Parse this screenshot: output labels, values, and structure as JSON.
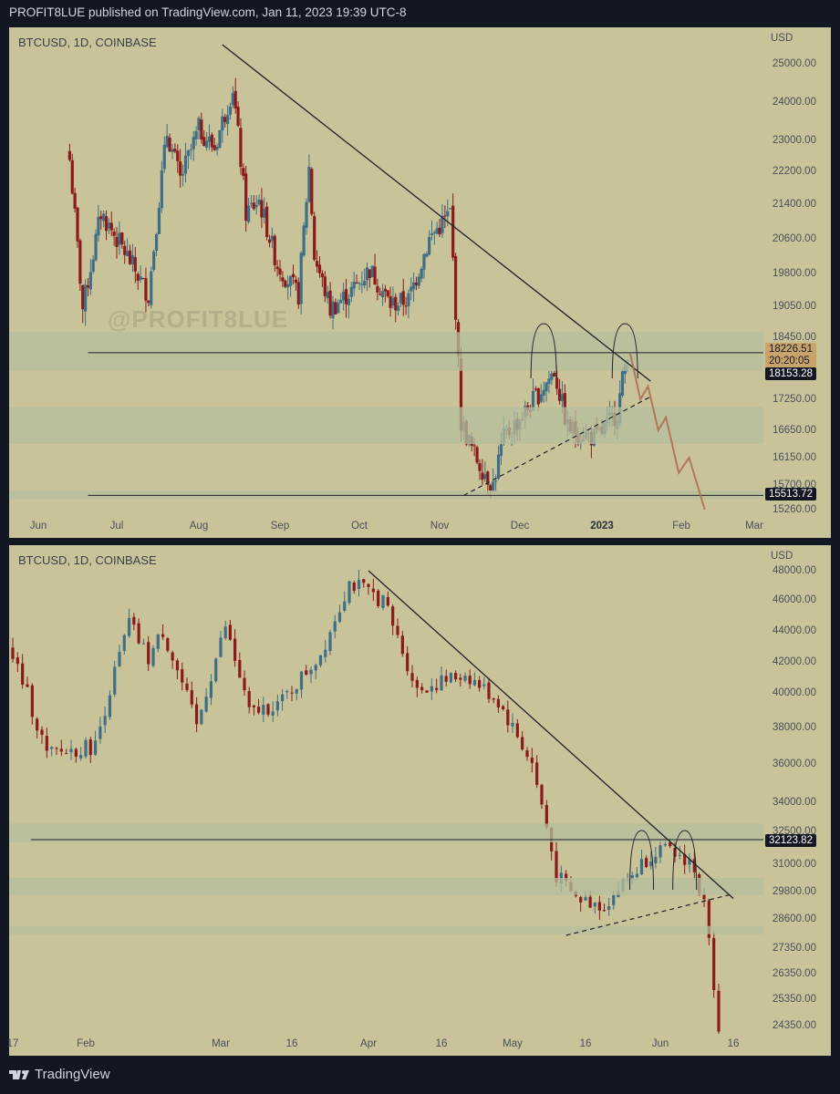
{
  "header": {
    "published": "PROFIT8LUE published on TradingView.com, Jan 11, 2023 19:39 UTC-8"
  },
  "footer": {
    "brand": "TradingView",
    "logo_icon": "tradingview-logo-icon"
  },
  "colors": {
    "background": "#c9c39a",
    "up": "#3f6f86",
    "down": "#8b1a1a",
    "zone": "#b4bd9c",
    "projection": "#b06a4e"
  },
  "chart_data": [
    {
      "type": "candlestick",
      "title": "BTCUSD, 1D, COINBASE",
      "watermark": "@PROFIT8LUE",
      "currency": "USD",
      "y_ticks": [
        "25000.00",
        "24000.00",
        "23000.00",
        "22200.00",
        "21400.00",
        "20600.00",
        "19800.00",
        "19050.00",
        "18450.00",
        "17250.00",
        "16650.00",
        "16150.00",
        "15700.00",
        "15260.00"
      ],
      "x_ticks": [
        "Jun",
        "Jul",
        "Aug",
        "Sep",
        "Oct",
        "Nov",
        "Dec",
        "2023",
        "Feb",
        "Mar"
      ],
      "price_tags": {
        "current": "18226.51",
        "countdown": "20:20:05",
        "line_a": "18153.28",
        "line_b": "15513.72"
      },
      "ohlc_path": [
        {
          "date": "2022-06-13",
          "close": 22500
        },
        {
          "date": "2022-06-18",
          "close": 19000
        },
        {
          "date": "2022-06-25",
          "close": 21200
        },
        {
          "date": "2022-07-05",
          "close": 20200
        },
        {
          "date": "2022-07-13",
          "close": 19300
        },
        {
          "date": "2022-07-20",
          "close": 23200
        },
        {
          "date": "2022-07-25",
          "close": 22000
        },
        {
          "date": "2022-08-01",
          "close": 23300
        },
        {
          "date": "2022-08-07",
          "close": 22800
        },
        {
          "date": "2022-08-14",
          "close": 24400
        },
        {
          "date": "2022-08-19",
          "close": 21200
        },
        {
          "date": "2022-08-24",
          "close": 21500
        },
        {
          "date": "2022-08-31",
          "close": 20000
        },
        {
          "date": "2022-09-08",
          "close": 19300
        },
        {
          "date": "2022-09-12",
          "close": 22300
        },
        {
          "date": "2022-09-14",
          "close": 20200
        },
        {
          "date": "2022-09-20",
          "close": 19000
        },
        {
          "date": "2022-09-28",
          "close": 19400
        },
        {
          "date": "2022-10-05",
          "close": 19900
        },
        {
          "date": "2022-10-13",
          "close": 19100
        },
        {
          "date": "2022-10-20",
          "close": 19200
        },
        {
          "date": "2022-10-28",
          "close": 20600
        },
        {
          "date": "2022-11-05",
          "close": 21200
        },
        {
          "date": "2022-11-09",
          "close": 16800
        },
        {
          "date": "2022-11-14",
          "close": 16200
        },
        {
          "date": "2022-11-21",
          "close": 15700
        },
        {
          "date": "2022-11-25",
          "close": 16500
        },
        {
          "date": "2022-12-03",
          "close": 17000
        },
        {
          "date": "2022-12-14",
          "close": 17800
        },
        {
          "date": "2022-12-19",
          "close": 16700
        },
        {
          "date": "2022-12-30",
          "close": 16500
        },
        {
          "date": "2023-01-07",
          "close": 17000
        },
        {
          "date": "2023-01-11",
          "close": 18226.51
        }
      ],
      "annotations": {
        "descending_trendline": [
          {
            "date": "2022-08-10",
            "price": 25500
          },
          {
            "date": "2023-01-20",
            "price": 17600
          }
        ],
        "rising_dashed_support": [
          {
            "date": "2022-11-10",
            "price": 15513
          },
          {
            "date": "2023-01-20",
            "price": 17300
          }
        ],
        "horizontal_lines": [
          18153.28,
          15513.72
        ],
        "zones": [
          [
            17800,
            18550
          ],
          [
            16400,
            17100
          ],
          [
            15450,
            15600
          ]
        ],
        "projection_target": 15260
      }
    },
    {
      "type": "candlestick",
      "title": "BTCUSD, 1D, COINBASE",
      "currency": "USD",
      "y_ticks": [
        "48000.00",
        "46000.00",
        "44000.00",
        "42000.00",
        "40000.00",
        "38000.00",
        "36000.00",
        "34000.00",
        "32500.00",
        "31000.00",
        "29800.00",
        "28600.00",
        "27350.00",
        "26350.00",
        "25350.00",
        "24350.00"
      ],
      "x_ticks": [
        "17",
        "Feb",
        "Mar",
        "16",
        "Apr",
        "16",
        "May",
        "16",
        "Jun",
        "16"
      ],
      "price_tags": {
        "line_a": "32123.82"
      },
      "ohlc_path": [
        {
          "date": "2022-01-17",
          "close": 42500
        },
        {
          "date": "2022-01-24",
          "close": 36500
        },
        {
          "date": "2022-02-03",
          "close": 37000
        },
        {
          "date": "2022-02-10",
          "close": 44500
        },
        {
          "date": "2022-02-14",
          "close": 42200
        },
        {
          "date": "2022-02-17",
          "close": 44000
        },
        {
          "date": "2022-02-24",
          "close": 38000
        },
        {
          "date": "2022-03-02",
          "close": 44300
        },
        {
          "date": "2022-03-07",
          "close": 38800
        },
        {
          "date": "2022-03-14",
          "close": 39500
        },
        {
          "date": "2022-03-22",
          "close": 42500
        },
        {
          "date": "2022-03-28",
          "close": 47200
        },
        {
          "date": "2022-04-04",
          "close": 46000
        },
        {
          "date": "2022-04-11",
          "close": 40200
        },
        {
          "date": "2022-04-21",
          "close": 41200
        },
        {
          "date": "2022-04-28",
          "close": 39500
        },
        {
          "date": "2022-05-05",
          "close": 36000
        },
        {
          "date": "2022-05-10",
          "close": 30500
        },
        {
          "date": "2022-05-14",
          "close": 29500
        },
        {
          "date": "2022-05-20",
          "close": 29200
        },
        {
          "date": "2022-05-31",
          "close": 31700
        },
        {
          "date": "2022-06-07",
          "close": 31200
        },
        {
          "date": "2022-06-10",
          "close": 29200
        },
        {
          "date": "2022-06-13",
          "close": 24400
        }
      ],
      "annotations": {
        "descending_trendline": [
          {
            "date": "2022-04-01",
            "price": 48000
          },
          {
            "date": "2022-06-16",
            "price": 29500
          }
        ],
        "rising_dashed_support": [
          {
            "date": "2022-05-12",
            "price": 27900
          },
          {
            "date": "2022-06-16",
            "price": 29700
          }
        ],
        "horizontal_lines": [
          32123.82
        ],
        "zones": [
          [
            32000,
            32900
          ],
          [
            29650,
            30400
          ],
          [
            27950,
            28300
          ]
        ]
      }
    }
  ]
}
